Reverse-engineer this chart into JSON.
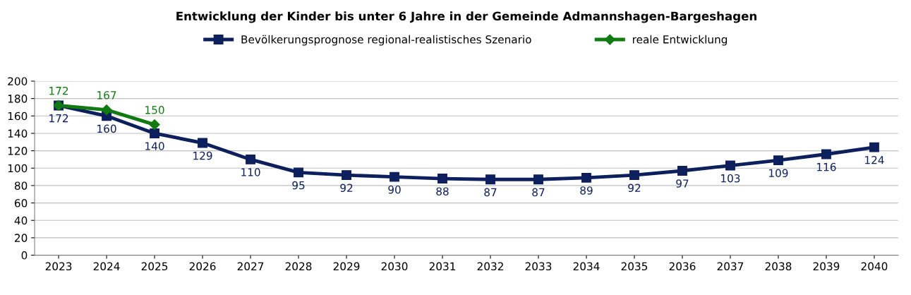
{
  "chart_data": {
    "type": "line",
    "title": "Entwicklung der Kinder bis unter 6 Jahre in der Gemeinde Admannshagen-Bargeshagen",
    "categories": [
      "2023",
      "2024",
      "2025",
      "2026",
      "2027",
      "2028",
      "2029",
      "2030",
      "2031",
      "2032",
      "2033",
      "2034",
      "2035",
      "2036",
      "2037",
      "2038",
      "2039",
      "2040"
    ],
    "series": [
      {
        "name": "Bevölkerungsprognose regional-realistisches Szenario",
        "color": "#0d1f5c",
        "marker": "square",
        "values": [
          172,
          160,
          140,
          129,
          110,
          95,
          92,
          90,
          88,
          87,
          87,
          89,
          92,
          97,
          103,
          109,
          116,
          124
        ]
      },
      {
        "name": "reale Entwicklung",
        "color": "#117a11",
        "marker": "diamond",
        "values": [
          172,
          167,
          150,
          null,
          null,
          null,
          null,
          null,
          null,
          null,
          null,
          null,
          null,
          null,
          null,
          null,
          null,
          null
        ]
      }
    ],
    "ylim": [
      0,
      200
    ],
    "yticks": [
      0,
      20,
      40,
      60,
      80,
      100,
      120,
      140,
      160,
      180,
      200
    ],
    "grid": "y",
    "legend": "top",
    "data_labels": true,
    "line_style": "solid"
  }
}
